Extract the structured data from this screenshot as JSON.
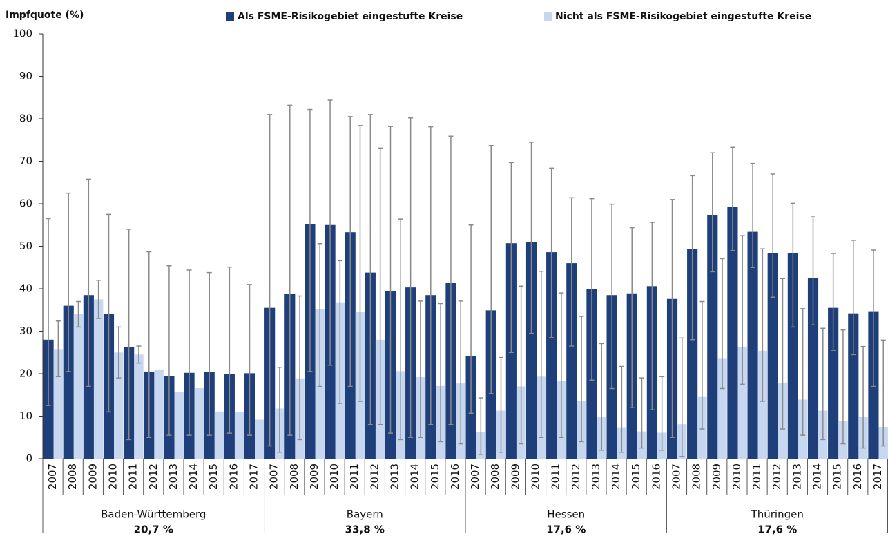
{
  "chart_data": {
    "type": "bar",
    "y_label": "Impfquote (%)",
    "ylim": [
      0,
      100
    ],
    "yticks": [
      0,
      10,
      20,
      30,
      40,
      50,
      60,
      70,
      80,
      90,
      100
    ],
    "series": [
      {
        "name": "Als FSME-Risikogebiet eingestufte Kreise",
        "color": "#1f3f7a"
      },
      {
        "name": "Nicht als FSME-Risikogebiet eingestufte Kreise",
        "color": "#c6d7ef"
      }
    ],
    "groups": [
      {
        "name": "Baden-Württemberg",
        "summary": "20,7 %",
        "categories": [
          "2007",
          "2008",
          "2009",
          "2010",
          "2011",
          "2012",
          "2013",
          "2014",
          "2015",
          "2016",
          "2017"
        ],
        "series": [
          {
            "values": [
              28,
              36,
              38.5,
              34,
              26.3,
              20.5,
              19.5,
              20.2,
              20.4,
              20,
              20.1
            ],
            "lower": [
              12.5,
              20.5,
              17,
              11,
              4.5,
              5,
              5.5,
              5.5,
              5.5,
              6,
              5.5
            ],
            "upper": [
              56.5,
              62.5,
              65.8,
              57.5,
              54,
              48.7,
              45.4,
              44.4,
              43.8,
              45.1,
              41
            ]
          },
          {
            "values": [
              25.8,
              34,
              37.5,
              25,
              24.5,
              21,
              15.7,
              16.6,
              11.1,
              10.9,
              9.2
            ],
            "lower": [
              19.3,
              31,
              33,
              19,
              22.5,
              null,
              null,
              null,
              null,
              null,
              null
            ],
            "upper": [
              32.4,
              37,
              42,
              31,
              26.5,
              null,
              null,
              null,
              null,
              null,
              null
            ]
          }
        ]
      },
      {
        "name": "Bayern",
        "summary": "33,8 %",
        "categories": [
          "2007",
          "2008",
          "2009",
          "2010",
          "2011",
          "2012",
          "2013",
          "2014",
          "2015",
          "2016"
        ],
        "series": [
          {
            "values": [
              35.5,
              38.8,
              55.2,
              55,
              53.3,
              43.8,
              39.4,
              40.3,
              38.5,
              41.3
            ],
            "lower": [
              3,
              5.5,
              20.5,
              22,
              17,
              8,
              6,
              5,
              8,
              8
            ],
            "upper": [
              81,
              83.2,
              82.2,
              84.4,
              80.5,
              81,
              78.2,
              80.2,
              78.1,
              75.9
            ]
          },
          {
            "values": [
              11.8,
              18.9,
              35.2,
              36.8,
              34.5,
              28,
              20.6,
              19.2,
              17.1,
              17.7
            ],
            "lower": [
              1.5,
              4.5,
              17,
              13,
              13.5,
              8,
              4.5,
              5,
              4,
              3.5
            ],
            "upper": [
              21.5,
              38.3,
              50.6,
              46.6,
              78.4,
              73.1,
              56.4,
              37.1,
              36.5,
              37.1
            ]
          }
        ]
      },
      {
        "name": "Hessen",
        "summary": "17,6 %",
        "categories": [
          "2007",
          "2008",
          "2009",
          "2010",
          "2011",
          "2012",
          "2013",
          "2014",
          "2015",
          "2016"
        ],
        "series": [
          {
            "values": [
              24.2,
              34.9,
              50.7,
              51,
              48.6,
              46,
              40,
              38.5,
              38.9,
              40.6
            ],
            "lower": [
              10.7,
              15.3,
              25,
              29.5,
              28.5,
              26.5,
              18.5,
              16.5,
              12,
              11.5
            ],
            "upper": [
              55,
              73.7,
              69.7,
              74.5,
              68.4,
              61.4,
              61.2,
              59.9,
              54.4,
              55.6
            ]
          },
          {
            "values": [
              6.3,
              11.3,
              17,
              19.3,
              18.3,
              13.6,
              9.9,
              7.4,
              6.4,
              6.1
            ],
            "lower": [
              1,
              1.5,
              3.5,
              5,
              5,
              4,
              2,
              1.5,
              2.5,
              2
            ],
            "upper": [
              14.3,
              23.8,
              40.6,
              44.1,
              39,
              33.5,
              27.1,
              21.7,
              19,
              19.3
            ]
          }
        ]
      },
      {
        "name": "Thüringen",
        "summary": "17,6 %",
        "categories": [
          "2007",
          "2008",
          "2009",
          "2010",
          "2011",
          "2012",
          "2013",
          "2014",
          "2015",
          "2016",
          "2017"
        ],
        "series": [
          {
            "values": [
              37.6,
              49.3,
              57.4,
              59.3,
              53.4,
              48.3,
              48.4,
              42.6,
              35.5,
              34.2,
              34.7
            ],
            "lower": [
              5,
              28,
              44,
              49,
              45,
              38,
              31,
              31.5,
              25.5,
              24.5,
              17
            ],
            "upper": [
              61,
              66.6,
              72,
              73.3,
              69.5,
              67,
              60.1,
              57.1,
              48.3,
              51.4,
              49.1
            ]
          },
          {
            "values": [
              8.1,
              14.5,
              23.5,
              26.3,
              25.4,
              17.9,
              13.9,
              11.3,
              8.8,
              9.9,
              7.5
            ],
            "lower": [
              0.5,
              7,
              16.5,
              17.5,
              13.5,
              7,
              5.5,
              4.5,
              3.5,
              2.5,
              3
            ],
            "upper": [
              28.4,
              37,
              47.1,
              52.5,
              49.4,
              42.4,
              35.3,
              30.7,
              30.3,
              26.4,
              27.9
            ]
          }
        ]
      }
    ]
  }
}
